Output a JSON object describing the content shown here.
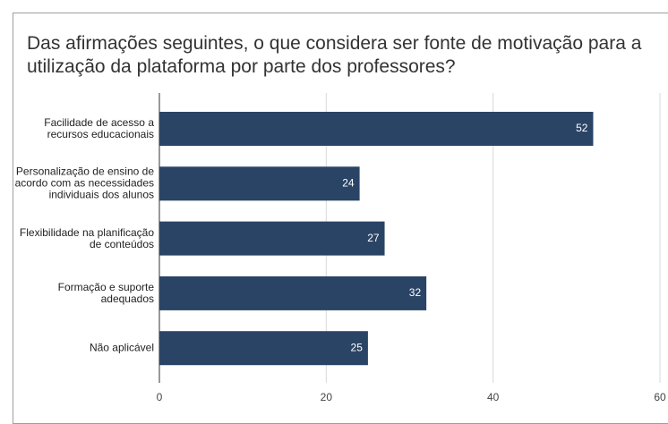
{
  "chart_data": {
    "type": "bar",
    "orientation": "horizontal",
    "title": "Das afirmações seguintes, o que considera ser fonte de motivação para a utilização da plataforma por parte dos professores?",
    "categories": [
      "Facilidade de acesso a recursos educacionais",
      "Personalização de ensino de acordo com as necessidades individuais dos alunos",
      "Flexibilidade na planificação de conteúdos",
      "Formação e suporte adequados",
      "Não aplicável"
    ],
    "values": [
      52,
      24,
      27,
      32,
      25
    ],
    "color": "#2a4466",
    "xlim": [
      0,
      60
    ],
    "xticks": [
      0,
      20,
      40,
      60
    ],
    "grid": true
  }
}
